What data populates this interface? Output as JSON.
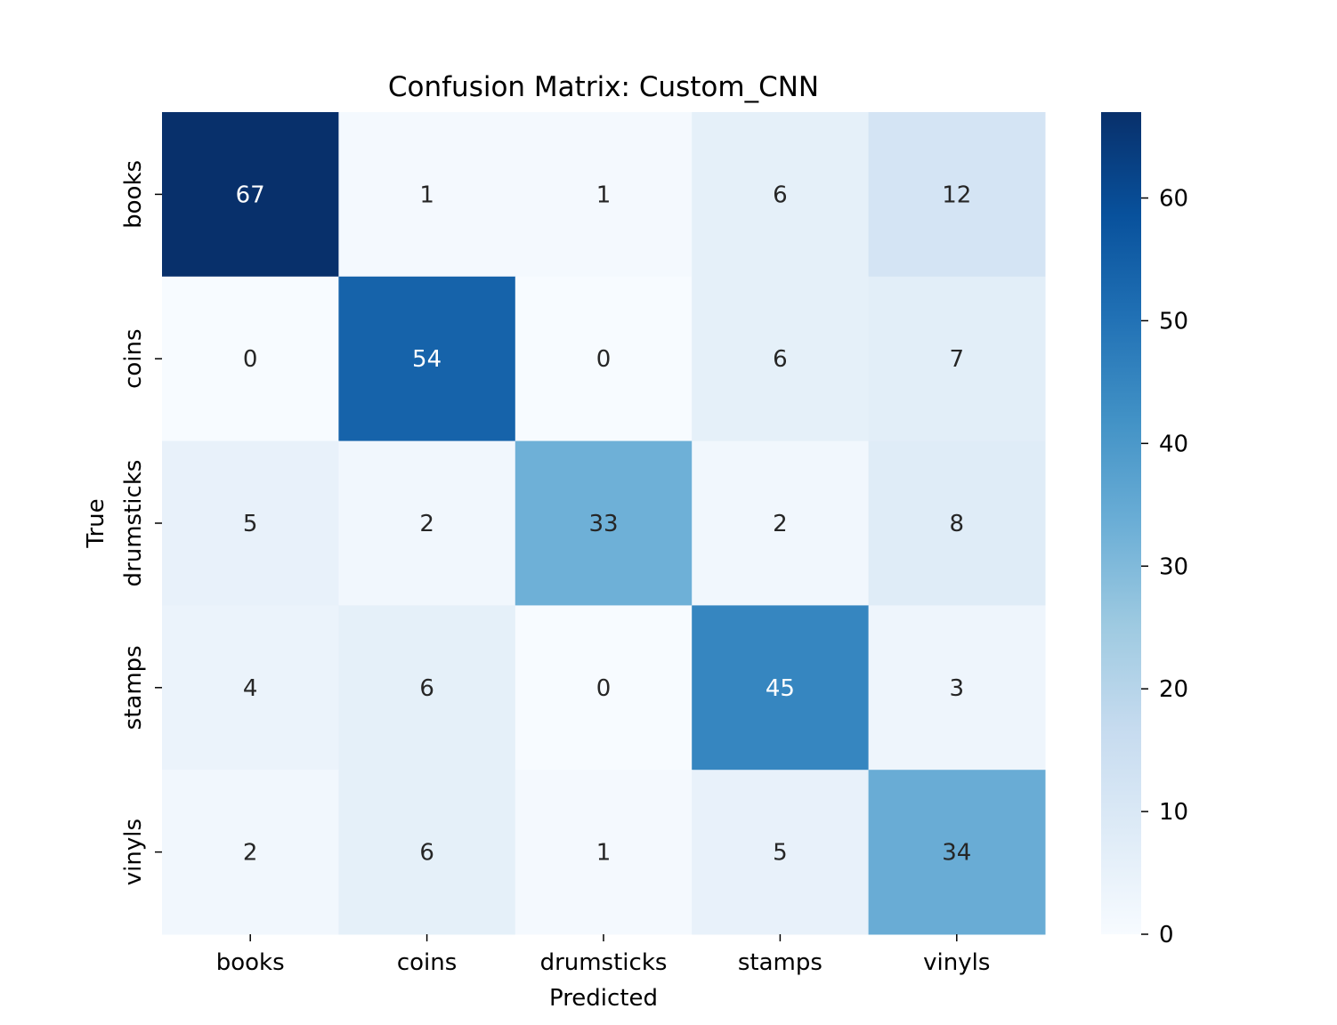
{
  "chart_data": {
    "type": "heatmap",
    "title": "Confusion Matrix: Custom_CNN",
    "xlabel": "Predicted",
    "ylabel": "True",
    "x_categories": [
      "books",
      "coins",
      "drumsticks",
      "stamps",
      "vinyls"
    ],
    "y_categories": [
      "books",
      "coins",
      "drumsticks",
      "stamps",
      "vinyls"
    ],
    "values": [
      [
        67,
        1,
        1,
        6,
        12
      ],
      [
        0,
        54,
        0,
        6,
        7
      ],
      [
        5,
        2,
        33,
        2,
        8
      ],
      [
        4,
        6,
        0,
        45,
        3
      ],
      [
        2,
        6,
        1,
        5,
        34
      ]
    ],
    "colorbar": {
      "min": 0,
      "max": 67,
      "ticks": [
        0,
        10,
        20,
        30,
        40,
        50,
        60
      ]
    },
    "colormap": "Blues",
    "colormap_stops": [
      "#f7fbff",
      "#deebf7",
      "#c6dbef",
      "#9ecae1",
      "#6baed6",
      "#4292c6",
      "#2171b5",
      "#08519c",
      "#08306b"
    ],
    "annotation_dark_color": "#262626",
    "annotation_light_color": "#ffffff",
    "grid": false
  }
}
